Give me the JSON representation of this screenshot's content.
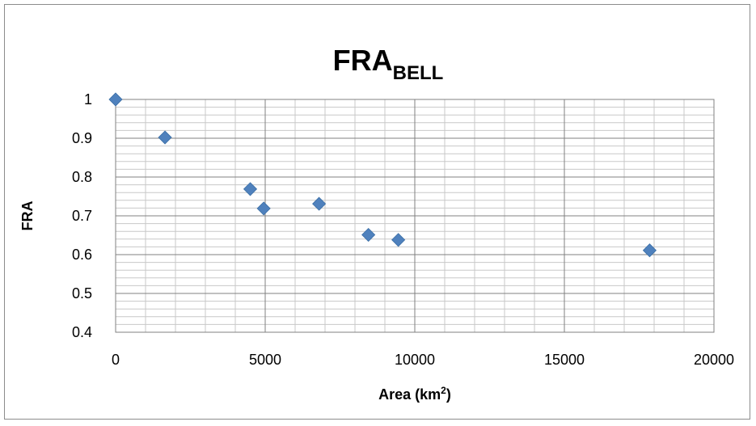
{
  "chart_data": {
    "type": "scatter",
    "title": "FRA",
    "title_subscript": "BELL",
    "xlabel": "Area (km",
    "xlabel_superscript": "2",
    "xlabel_suffix": ")",
    "ylabel": "FRA",
    "xlim": [
      0,
      20000
    ],
    "ylim": [
      0.4,
      1.0
    ],
    "x_ticks": [
      0,
      5000,
      10000,
      15000,
      20000
    ],
    "x_tick_labels": [
      "0",
      "5000",
      "10000",
      "15000",
      "20000"
    ],
    "y_ticks": [
      0.4,
      0.5,
      0.6,
      0.7,
      0.8,
      0.9,
      1.0
    ],
    "y_tick_labels": [
      "0.4",
      "0.5",
      "0.6",
      "0.7",
      "0.8",
      "0.9",
      "1"
    ],
    "x_minor_step": 1000,
    "y_minor_step": 0.02,
    "grid": true,
    "legend": "none",
    "marker": "diamond",
    "marker_color": "#4F81BD",
    "series": [
      {
        "values": [
          {
            "x": 0,
            "y": 1.0
          },
          {
            "x": 1650,
            "y": 0.902
          },
          {
            "x": 4500,
            "y": 0.769
          },
          {
            "x": 4950,
            "y": 0.719
          },
          {
            "x": 6800,
            "y": 0.731
          },
          {
            "x": 8450,
            "y": 0.651
          },
          {
            "x": 9450,
            "y": 0.638
          },
          {
            "x": 17850,
            "y": 0.611
          }
        ]
      }
    ]
  }
}
